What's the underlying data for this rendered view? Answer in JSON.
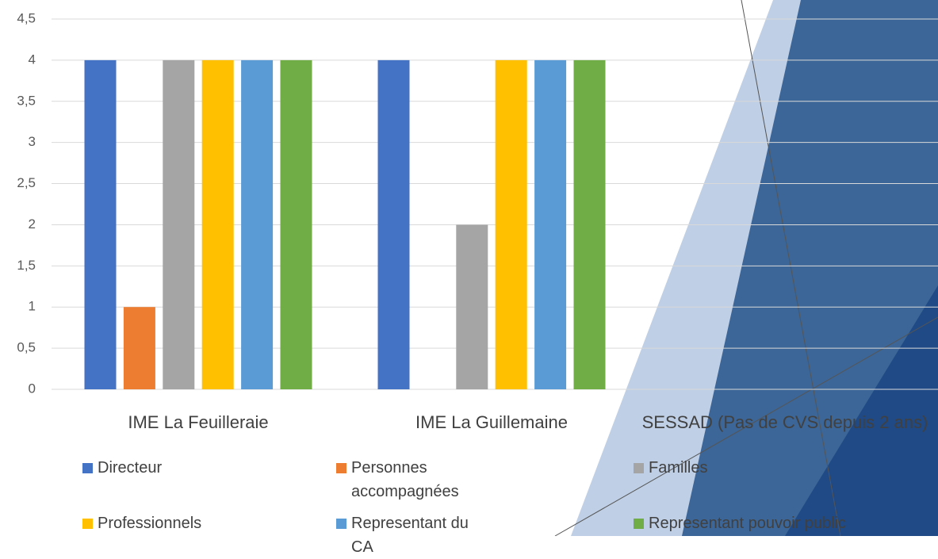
{
  "chart_data": {
    "type": "bar",
    "categories": [
      "IME La Feuilleraie",
      "IME La Guillemaine",
      "SESSAD (Pas de CVS depuis 2 ans)"
    ],
    "series": [
      {
        "name": "Directeur",
        "color": "#4472c4",
        "values": [
          4,
          4,
          0
        ]
      },
      {
        "name": "Personnes accompagnées",
        "color": "#ed7d31",
        "values": [
          1,
          0,
          0
        ]
      },
      {
        "name": "Familles",
        "color": "#a5a5a5",
        "values": [
          4,
          2,
          0
        ]
      },
      {
        "name": "Professionnels",
        "color": "#ffc000",
        "values": [
          4,
          4,
          0
        ]
      },
      {
        "name": "Representant du CA",
        "color": "#5b9bd5",
        "values": [
          4,
          4,
          0
        ]
      },
      {
        "name": "Representant pouvoir public",
        "color": "#70ad47",
        "values": [
          4,
          4,
          0
        ]
      }
    ],
    "ylim": [
      0,
      4.5
    ],
    "yticks": [
      0,
      {
        "value": 0.5,
        "label": "0,5"
      },
      1,
      {
        "value": 1.5,
        "label": "1,5"
      },
      2,
      {
        "value": 2.5,
        "label": "2,5"
      },
      3,
      {
        "value": 3.5,
        "label": "3,5"
      },
      4,
      {
        "value": 4.5,
        "label": "4,5"
      }
    ],
    "grid": true,
    "legend": "bottom"
  }
}
